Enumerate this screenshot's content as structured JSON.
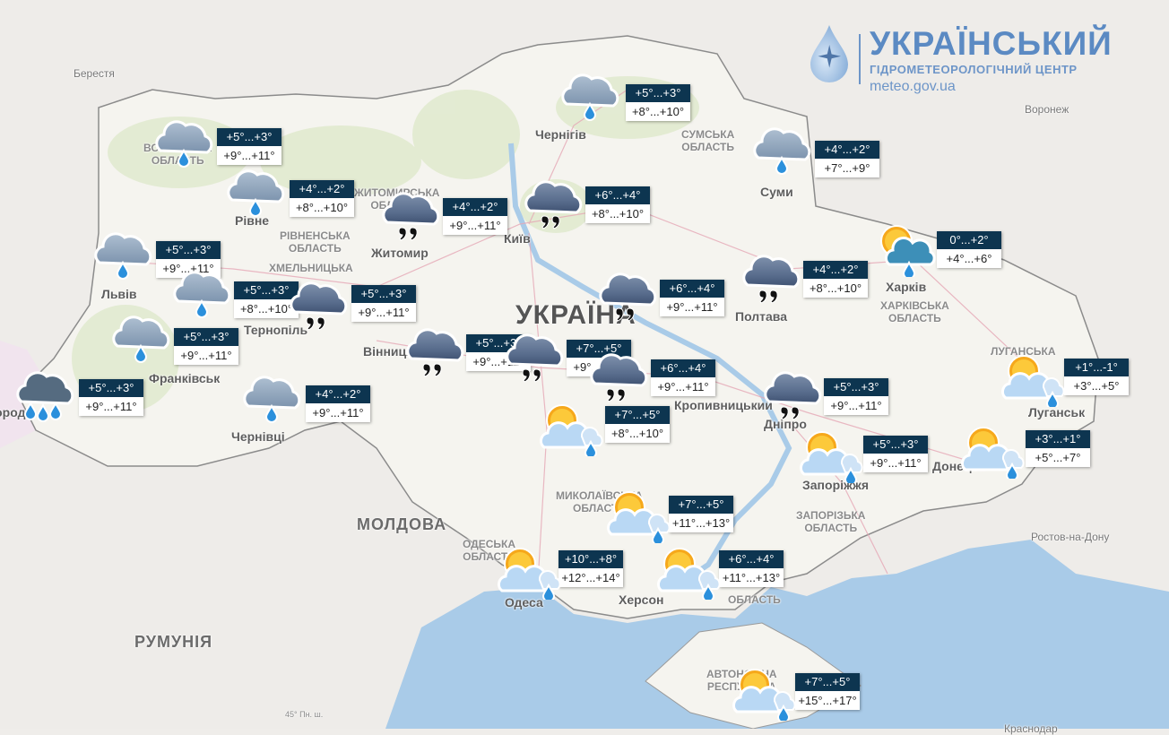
{
  "logo": {
    "title": "УКРАЇНСЬКИЙ",
    "subtitle": "ГІДРОМЕТЕОРОЛОГІЧНИЙ ЦЕНТР",
    "url": "meteo.gov.ua",
    "color": "#5b8ac3"
  },
  "colors": {
    "label_header": "#0d3550",
    "sea": "#a9cbe8",
    "land": "#f5f4f0"
  },
  "map_labels": {
    "berestia": "Берестя",
    "chernihiv": "Чернігів",
    "sumy_oblast": "СУМСЬКА\nОБЛАСТЬ",
    "sumy": "Суми",
    "voronezh": "Воронеж",
    "kyiv": "Київ",
    "zhytomyr": "Житомир",
    "zhytomyr_oblast": "ЖИТОМИРСЬКА\nОБЛАСТЬ",
    "volyn_oblast": "ВОЛИНСЬКА\nОБЛАСТЬ",
    "rivne_oblast": "РІВНЕНСЬКА\nОБЛАСТЬ",
    "khmelnytska": "ХМЕЛЬНИЦЬКА",
    "lviv": "Львів",
    "rivne": "Рівне",
    "ternopil": "Тернопіль",
    "frankivsk": "Франківськ",
    "uzhhorod": "Ужгород",
    "chernivtsi": "Чернівці",
    "vinnytsia": "Вінниця",
    "ukraine": "УКРАЇНА",
    "poltava": "Полтава",
    "kharkiv": "Харків",
    "kharkiv_oblast": "ХАРКІВСЬКА\nОБЛАСТЬ",
    "luhansk_oblast": "ЛУГАНСЬКА",
    "luhansk": "Луганськ",
    "dnipro": "Дніпро",
    "zaporizhzhia": "Запоріжжя",
    "zaporizhzhia_oblast": "ЗАПОРІЗЬКА\nОБЛАСТЬ",
    "donetsk": "Донецьк",
    "kropyvnytskyi": "Кропивницький",
    "moldova": "МОЛДОВА",
    "romania": "РУМУНІЯ",
    "mykolaiv_oblast": "МИКОЛАЇВСЬКА\nОБЛАСТЬ",
    "odesa_oblast": "ОДЕСЬКА\nОБЛАСТЬ",
    "odesa": "Одеса",
    "kherson": "Херсон",
    "kherson_oblast": "ОБЛАСТЬ",
    "rostov": "Ростов-на-Дону",
    "crimea": "АВТОНОМНА\nРЕСПУБЛІКА",
    "latitude": "45° Пн. ш.",
    "krasnodar": "Краснодар"
  },
  "forecasts": [
    {
      "place": "volyn",
      "icon": "rain-cloud-icon",
      "night": "+5°...+3°",
      "day": "+9°...+11°"
    },
    {
      "place": "rivne",
      "icon": "rain-cloud-icon",
      "night": "+4°...+2°",
      "day": "+8°...+10°"
    },
    {
      "place": "zhytomyr",
      "icon": "drizzle-cloud-icon",
      "night": "+4°...+2°",
      "day": "+9°...+11°"
    },
    {
      "place": "kyiv",
      "icon": "drizzle-cloud-icon",
      "night": "+6°...+4°",
      "day": "+8°...+10°"
    },
    {
      "place": "chernihiv",
      "icon": "rain-cloud-icon",
      "night": "+5°...+3°",
      "day": "+8°...+10°"
    },
    {
      "place": "sumy",
      "icon": "rain-cloud-icon",
      "night": "+4°...+2°",
      "day": "+7°...+9°"
    },
    {
      "place": "kharkiv",
      "icon": "sun-rain-cloud-icon",
      "night": "0°...+2°",
      "day": "+4°...+6°"
    },
    {
      "place": "poltava",
      "icon": "drizzle-cloud-icon",
      "night": "+4°...+2°",
      "day": "+8°...+10°"
    },
    {
      "place": "lviv",
      "icon": "rain-cloud-icon",
      "night": "+5°...+3°",
      "day": "+9°...+11°"
    },
    {
      "place": "ternopil",
      "icon": "rain-cloud-icon",
      "night": "+5°...+3°",
      "day": "+8°...+10°"
    },
    {
      "place": "khmelnytskyi",
      "icon": "drizzle-cloud-icon",
      "night": "+5°...+3°",
      "day": "+9°...+11°"
    },
    {
      "place": "ivano-frankivsk",
      "icon": "rain-cloud-icon",
      "night": "+5°...+3°",
      "day": "+9°...+11°"
    },
    {
      "place": "uzhhorod",
      "icon": "heavy-rain-cloud-icon",
      "night": "+5°...+3°",
      "day": "+9°...+11°"
    },
    {
      "place": "chernivtsi",
      "icon": "rain-cloud-icon",
      "night": "+4°...+2°",
      "day": "+9°...+11°"
    },
    {
      "place": "vinnytsia",
      "icon": "drizzle-cloud-icon",
      "night": "+5°...+3°",
      "day": "+9°...+11°"
    },
    {
      "place": "cherkasy",
      "icon": "drizzle-cloud-icon",
      "night": "+6°...+4°",
      "day": "+9°...+11°"
    },
    {
      "place": "uman",
      "icon": "drizzle-cloud-icon",
      "night": "+7°...+5°",
      "day": "+9°...+11°"
    },
    {
      "place": "kropyvnytskyi",
      "icon": "drizzle-cloud-icon",
      "night": "+6°...+4°",
      "day": "+9°...+11°"
    },
    {
      "place": "kropyvnytskyi-south",
      "icon": "sun-cloud-rain-icon",
      "night": "+7°...+5°",
      "day": "+8°...+10°"
    },
    {
      "place": "dnipro",
      "icon": "drizzle-cloud-icon",
      "night": "+5°...+3°",
      "day": "+9°...+11°"
    },
    {
      "place": "zaporizhzhia",
      "icon": "sun-cloud-rain-icon",
      "night": "+5°...+3°",
      "day": "+9°...+11°"
    },
    {
      "place": "donetsk",
      "icon": "sun-cloud-rain-icon",
      "night": "+3°...+1°",
      "day": "+5°...+7°"
    },
    {
      "place": "luhansk",
      "icon": "sun-cloud-rain-icon",
      "night": "+1°...-1°",
      "day": "+3°...+5°"
    },
    {
      "place": "mykolaiv",
      "icon": "sun-cloud-rain-icon",
      "night": "+7°...+5°",
      "day": "+11°...+13°"
    },
    {
      "place": "odesa",
      "icon": "sun-cloud-rain-icon",
      "night": "+10°...+8°",
      "day": "+12°...+14°"
    },
    {
      "place": "kherson",
      "icon": "sun-cloud-rain-icon",
      "night": "+6°...+4°",
      "day": "+11°...+13°"
    },
    {
      "place": "crimea",
      "icon": "sun-cloud-rain-icon",
      "night": "+7°...+5°",
      "day": "+15°...+17°"
    }
  ]
}
